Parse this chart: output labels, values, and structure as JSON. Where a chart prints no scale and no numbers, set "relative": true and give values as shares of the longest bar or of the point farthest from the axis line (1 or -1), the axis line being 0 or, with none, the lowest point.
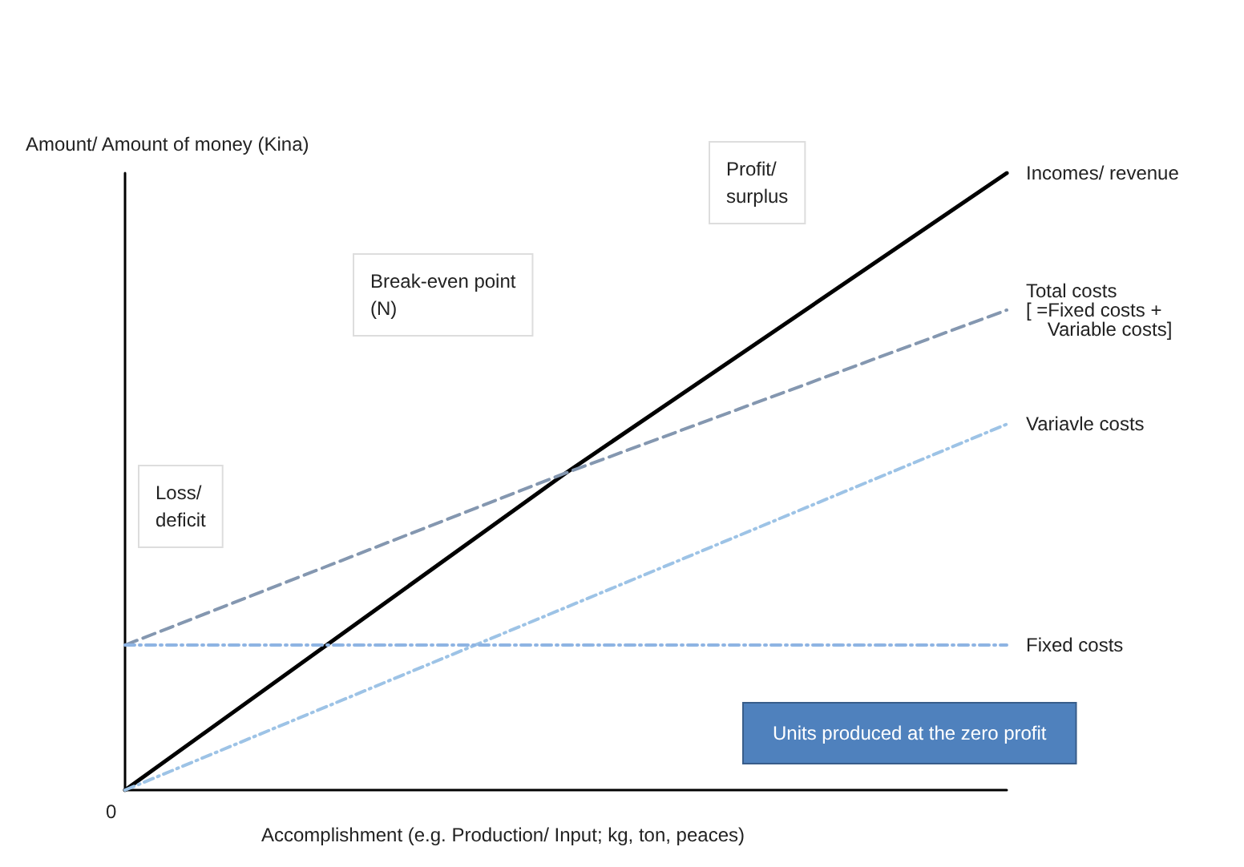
{
  "chart_data": {
    "type": "line",
    "relative": true,
    "xlabel": "Accomplishment (e.g. Production/ Input; kg, ton, peaces)",
    "ylabel": "Amount/ Amount of money (Kina)",
    "categories": [
      null,
      null,
      null
    ],
    "legend": false,
    "grid": false,
    "marker": "none",
    "series": [
      {
        "name": "Incomes/ revenue",
        "color": "#000000",
        "line_style": "solid",
        "values": [
          0,
          0.514,
          1
        ]
      },
      {
        "name": "Total costs\n[ =Fixed costs +\n    Variable costs]",
        "color": "#8497b0",
        "line_style": "dashed",
        "values": [
          0.235,
          0.514,
          0.778
        ]
      },
      {
        "name": "Variavle costs",
        "color": "#9dc3e6",
        "line_style": "dotted",
        "values": [
          0,
          0.296,
          0.593
        ]
      },
      {
        "name": "Fixed costs",
        "color": "#8eb4e3",
        "line_style": "dotted",
        "values": [
          0.235,
          0.235,
          0.235
        ]
      }
    ],
    "annotations": [
      "0",
      "Break-even point\n(N)",
      "Loss/\ndeficit",
      "Profit/\nsurplus",
      "Units produced at the zero profit"
    ]
  }
}
